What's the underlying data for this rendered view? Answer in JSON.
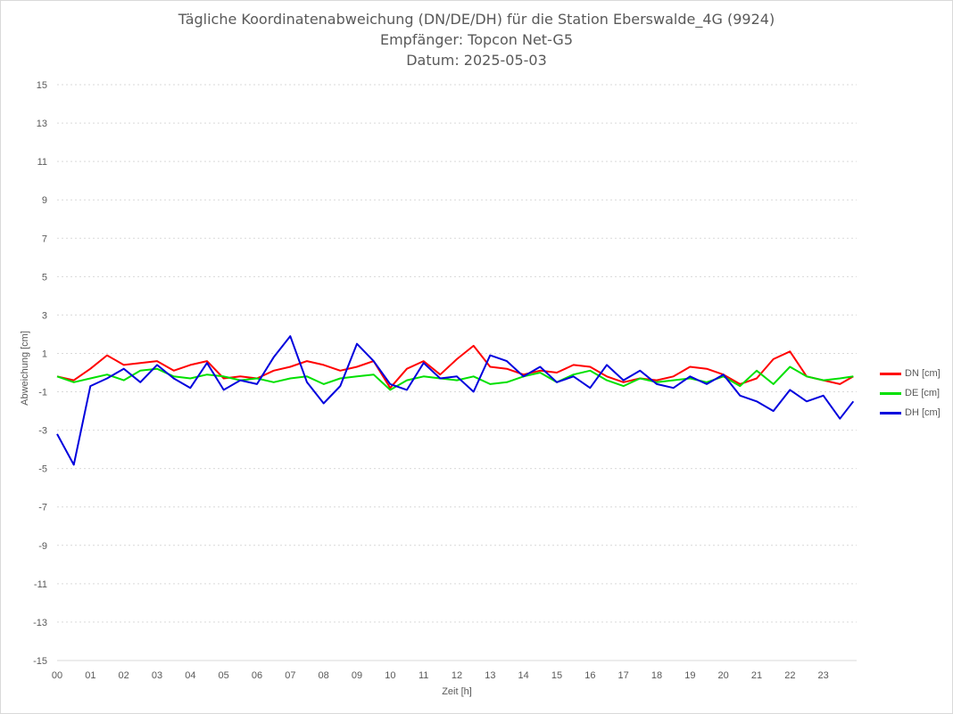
{
  "chart_data": {
    "type": "line",
    "title": "Tägliche Koordinatenabweichung (DN/DE/DH) für die Station Eberswalde_4G (9924)",
    "subtitle": "Empfänger: Topcon Net-G5",
    "date_line": "Datum: 2025-05-03",
    "xlabel": "Zeit [h]",
    "ylabel": "Abweichung [cm]",
    "xlim": [
      0,
      24
    ],
    "ylim": [
      -15,
      15
    ],
    "x_ticks": [
      "00",
      "01",
      "02",
      "03",
      "04",
      "05",
      "06",
      "07",
      "08",
      "09",
      "10",
      "11",
      "12",
      "13",
      "14",
      "15",
      "16",
      "17",
      "18",
      "19",
      "20",
      "21",
      "22",
      "23"
    ],
    "y_ticks": [
      15,
      13,
      11,
      9,
      7,
      5,
      3,
      1,
      -1,
      -3,
      -5,
      -7,
      -9,
      -11,
      -13,
      -15
    ],
    "grid": true,
    "legend_position": "right",
    "x": [
      0,
      0.5,
      1,
      1.5,
      2,
      2.5,
      3,
      3.5,
      4,
      4.5,
      5,
      5.5,
      6,
      6.5,
      7,
      7.5,
      8,
      8.5,
      9,
      9.5,
      10,
      10.5,
      11,
      11.5,
      12,
      12.5,
      13,
      13.5,
      14,
      14.5,
      15,
      15.5,
      16,
      16.5,
      17,
      17.5,
      18,
      18.5,
      19,
      19.5,
      20,
      20.5,
      21,
      21.5,
      22,
      22.5,
      23,
      23.5,
      23.9
    ],
    "series": [
      {
        "name": "DN [cm]",
        "color": "#ff0000",
        "values": [
          -0.2,
          -0.4,
          0.2,
          0.9,
          0.4,
          0.5,
          0.6,
          0.1,
          0.4,
          0.6,
          -0.3,
          -0.2,
          -0.3,
          0.1,
          0.3,
          0.6,
          0.4,
          0.1,
          0.3,
          0.6,
          -0.8,
          0.2,
          0.6,
          -0.1,
          0.7,
          1.4,
          0.3,
          0.2,
          -0.1,
          0.1,
          0.0,
          0.4,
          0.3,
          -0.2,
          -0.5,
          -0.3,
          -0.4,
          -0.2,
          0.3,
          0.2,
          -0.1,
          -0.6,
          -0.3,
          0.7,
          1.1,
          -0.2,
          -0.4,
          -0.6,
          -0.2
        ]
      },
      {
        "name": "DE [cm]",
        "color": "#00e000",
        "values": [
          -0.2,
          -0.5,
          -0.3,
          -0.1,
          -0.4,
          0.1,
          0.2,
          -0.2,
          -0.3,
          -0.1,
          -0.2,
          -0.4,
          -0.3,
          -0.5,
          -0.3,
          -0.2,
          -0.6,
          -0.3,
          -0.2,
          -0.1,
          -0.9,
          -0.4,
          -0.2,
          -0.3,
          -0.4,
          -0.2,
          -0.6,
          -0.5,
          -0.2,
          0.0,
          -0.5,
          -0.1,
          0.1,
          -0.4,
          -0.7,
          -0.3,
          -0.5,
          -0.4,
          -0.3,
          -0.5,
          -0.2,
          -0.7,
          0.1,
          -0.6,
          0.3,
          -0.2,
          -0.4,
          -0.3,
          -0.2
        ]
      },
      {
        "name": "DH [cm]",
        "color": "#0000dd",
        "values": [
          -3.2,
          -4.8,
          -0.7,
          -0.3,
          0.2,
          -0.5,
          0.4,
          -0.3,
          -0.8,
          0.5,
          -0.9,
          -0.4,
          -0.6,
          0.8,
          1.9,
          -0.5,
          -1.6,
          -0.7,
          1.5,
          0.6,
          -0.6,
          -0.9,
          0.5,
          -0.3,
          -0.2,
          -1.0,
          0.9,
          0.6,
          -0.2,
          0.3,
          -0.5,
          -0.2,
          -0.8,
          0.4,
          -0.4,
          0.1,
          -0.6,
          -0.8,
          -0.2,
          -0.6,
          -0.1,
          -1.2,
          -1.5,
          -2.0,
          -0.9,
          -1.5,
          -1.2,
          -2.4,
          -1.5
        ]
      }
    ]
  }
}
